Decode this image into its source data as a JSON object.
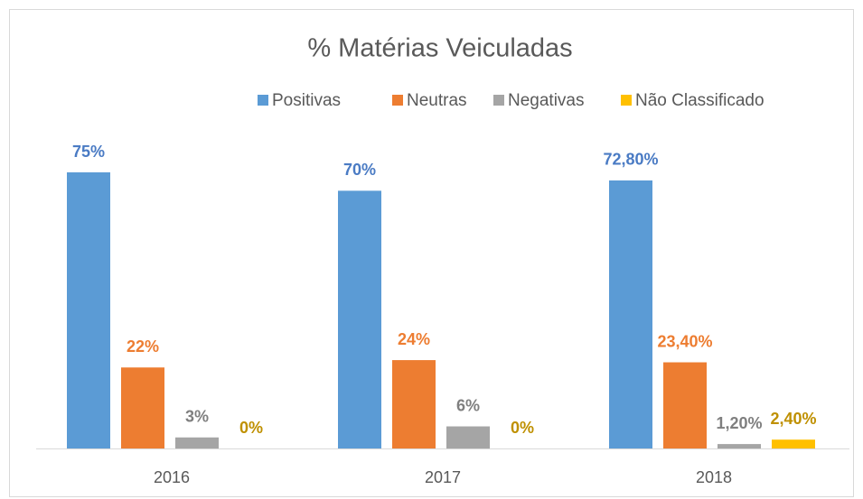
{
  "chart_data": {
    "type": "bar",
    "title": "% Matérias Veiculadas",
    "categories": [
      "2016",
      "2017",
      "2018"
    ],
    "series": [
      {
        "name": "Positivas",
        "color": "#5b9bd5",
        "label_color": "#4a7bc4",
        "values": [
          75,
          70,
          72.8
        ],
        "value_labels": [
          "75%",
          "70%",
          "72,80%"
        ]
      },
      {
        "name": "Neutras",
        "color": "#ed7d31",
        "label_color": "#ed7d31",
        "values": [
          22,
          24,
          23.4
        ],
        "value_labels": [
          "22%",
          "24%",
          "23,40%"
        ]
      },
      {
        "name": "Negativas",
        "color": "#a5a5a5",
        "label_color": "#7f7f7f",
        "values": [
          3,
          6,
          1.2
        ],
        "value_labels": [
          "3%",
          "6%",
          "1,20%"
        ]
      },
      {
        "name": "Não Classificado",
        "color": "#ffc000",
        "label_color": "#bf9000",
        "values": [
          0,
          0,
          2.4
        ],
        "value_labels": [
          "0%",
          "0%",
          "2,40%"
        ]
      }
    ],
    "legend": "top"
  }
}
